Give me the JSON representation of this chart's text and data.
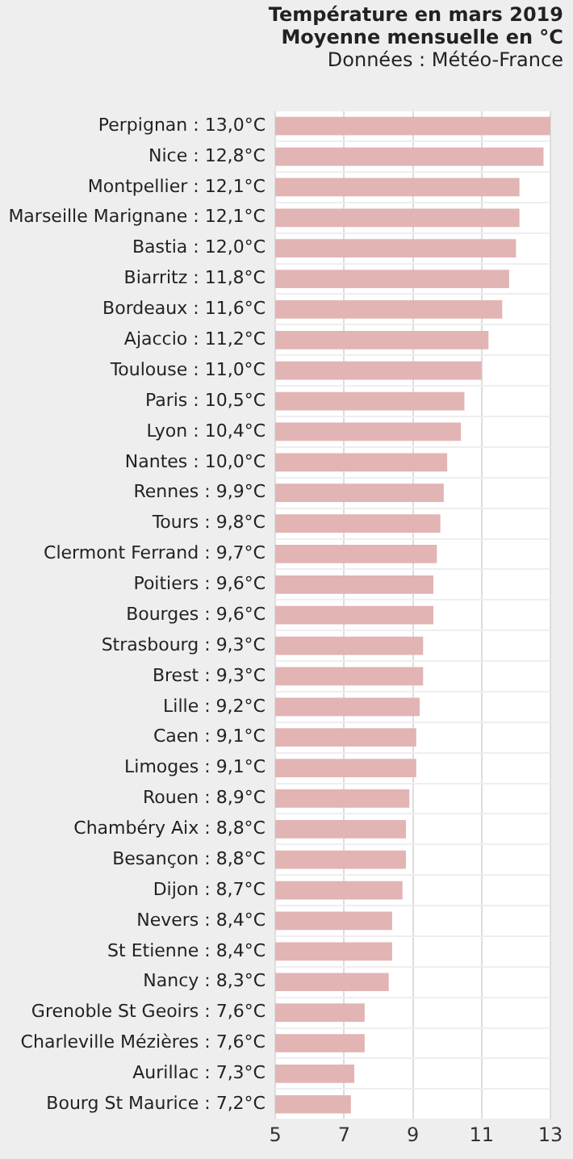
{
  "chart_data": {
    "type": "bar",
    "orientation": "horizontal",
    "title": "Température en mars 2019",
    "subtitle": "Moyenne mensuelle en °C",
    "annotations": [
      "Données : Météo-France"
    ],
    "categories": [
      "Perpignan : 13,0°C",
      "Nice : 12,8°C",
      "Montpellier : 12,1°C",
      "Marseille Marignane : 12,1°C",
      "Bastia : 12,0°C",
      "Biarritz : 11,8°C",
      "Bordeaux : 11,6°C",
      "Ajaccio : 11,2°C",
      "Toulouse : 11,0°C",
      "Paris : 10,5°C",
      "Lyon : 10,4°C",
      "Nantes : 10,0°C",
      "Rennes : 9,9°C",
      "Tours : 9,8°C",
      "Clermont Ferrand : 9,7°C",
      "Poitiers : 9,6°C",
      "Bourges : 9,6°C",
      "Strasbourg : 9,3°C",
      "Brest : 9,3°C",
      "Lille : 9,2°C",
      "Caen : 9,1°C",
      "Limoges : 9,1°C",
      "Rouen : 8,9°C",
      "Chambéry Aix : 8,8°C",
      "Besançon : 8,8°C",
      "Dijon : 8,7°C",
      "Nevers : 8,4°C",
      "St Etienne : 8,4°C",
      "Nancy : 8,3°C",
      "Grenoble St Geoirs : 7,6°C",
      "Charleville Mézières : 7,6°C",
      "Aurillac : 7,3°C",
      "Bourg St Maurice : 7,2°C"
    ],
    "values": [
      13.0,
      12.8,
      12.1,
      12.1,
      12.0,
      11.8,
      11.6,
      11.2,
      11.0,
      10.5,
      10.4,
      10.0,
      9.9,
      9.8,
      9.7,
      9.6,
      9.6,
      9.3,
      9.3,
      9.2,
      9.1,
      9.1,
      8.9,
      8.8,
      8.8,
      8.7,
      8.4,
      8.4,
      8.3,
      7.6,
      7.6,
      7.3,
      7.2
    ],
    "color": "#e2b4b4",
    "xlim": [
      5,
      13
    ],
    "xticks": [
      5,
      7,
      9,
      11,
      13
    ],
    "grid": true,
    "legend": false
  }
}
